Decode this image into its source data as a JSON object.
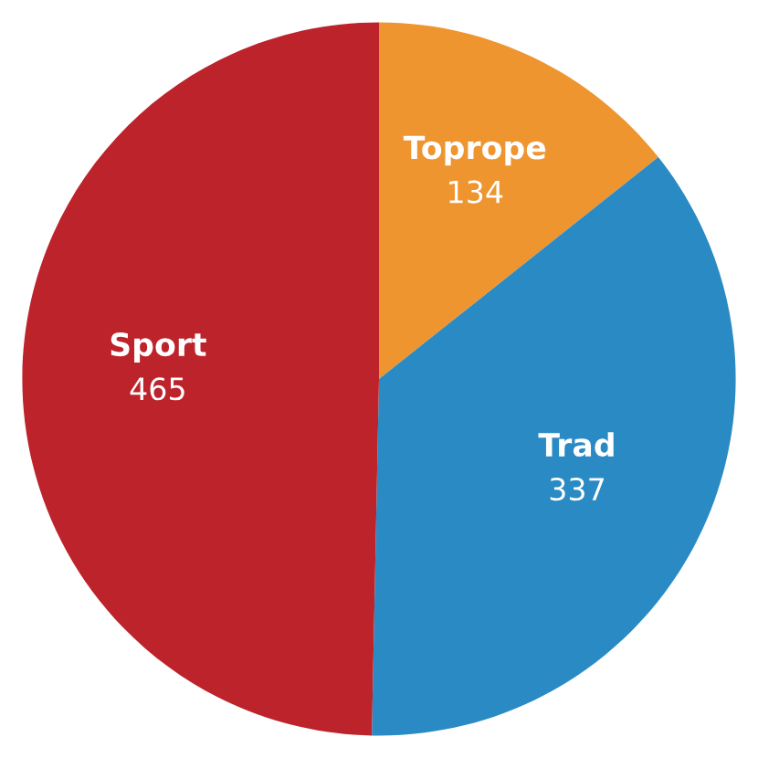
{
  "chart_data": {
    "type": "pie",
    "categories": [
      "Toprope",
      "Trad",
      "Sport"
    ],
    "values": [
      134,
      337,
      465
    ],
    "colors": [
      "#ee9530",
      "#2a8ac4",
      "#bd232b"
    ],
    "data_labels": true
  }
}
